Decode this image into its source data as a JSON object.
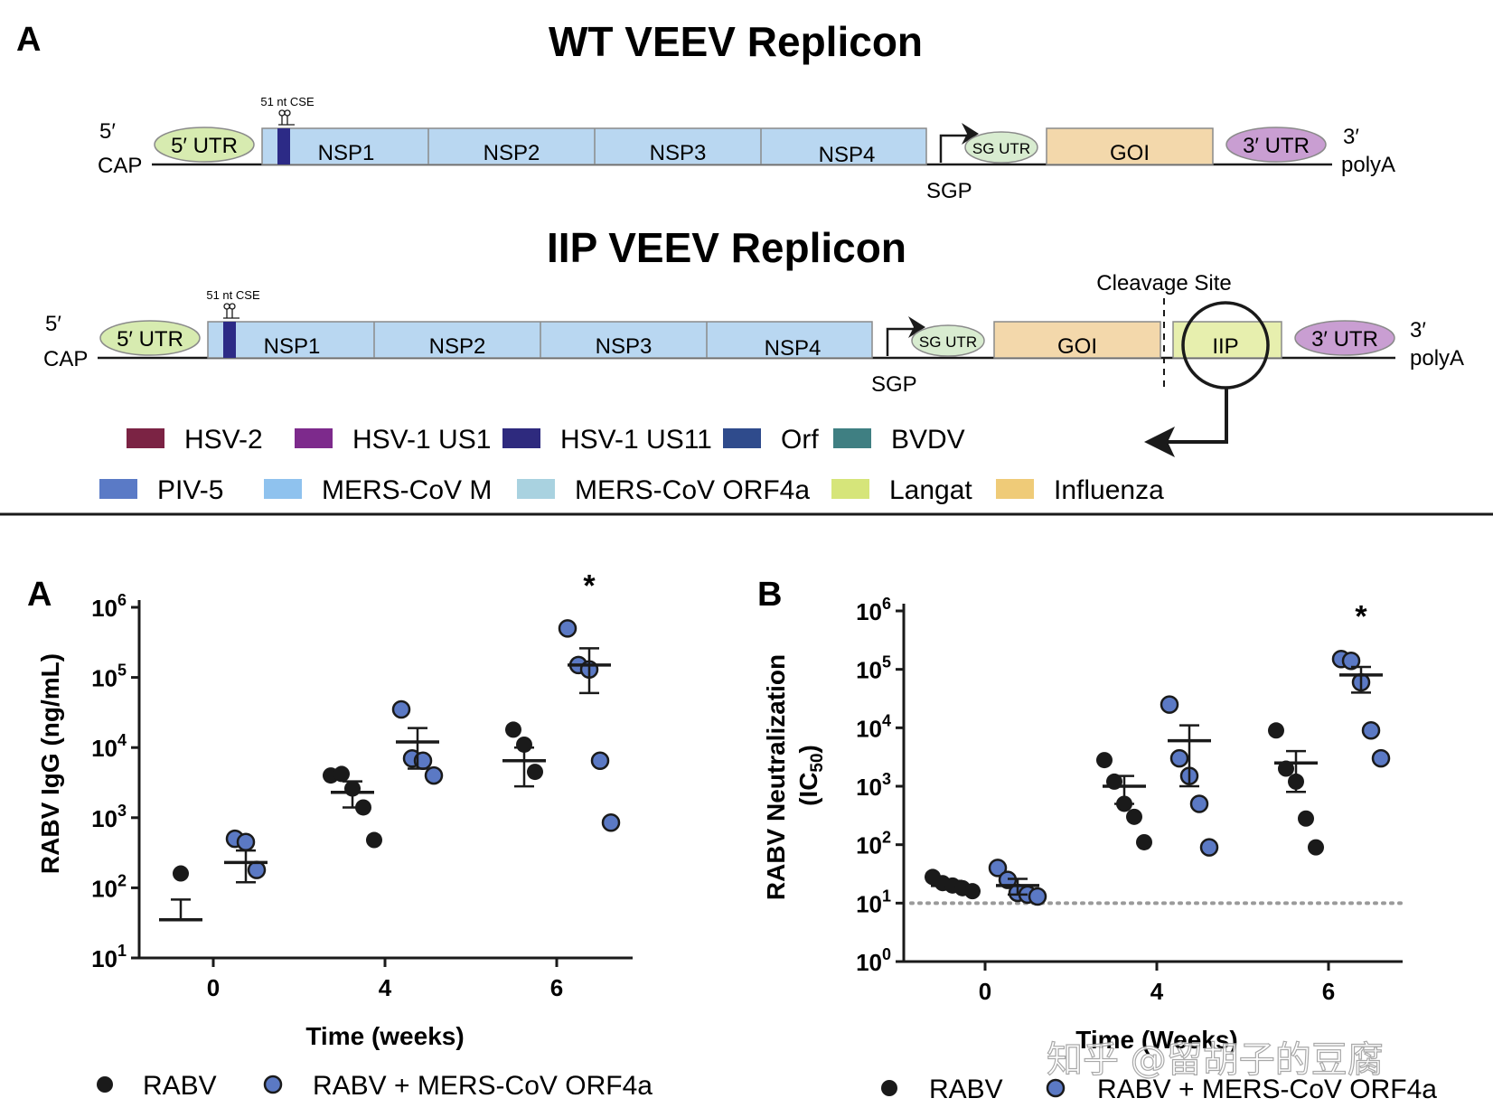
{
  "top_panel": {
    "label": "A",
    "wt": {
      "title": "WT VEEV Replicon",
      "five_prime": "5′",
      "cap": "CAP",
      "utr5": "5′ UTR",
      "cse": "51 nt CSE",
      "nsps": [
        "NSP1",
        "NSP2",
        "NSP3",
        "NSP4"
      ],
      "sg_utr": "SG UTR",
      "sgp": "SGP",
      "goi": "GOI",
      "utr3": "3′ UTR",
      "three_prime": "3′",
      "polya": "polyA"
    },
    "iip": {
      "title": "IIP VEEV Replicon",
      "five_prime": "5′",
      "cap": "CAP",
      "utr5": "5′ UTR",
      "cse": "51 nt CSE",
      "nsps": [
        "NSP1",
        "NSP2",
        "NSP3",
        "NSP4"
      ],
      "sg_utr": "SG UTR",
      "sgp": "SGP",
      "goi": "GOI",
      "cleavage": "Cleavage Site",
      "iip": "IIP",
      "utr3": "3′ UTR",
      "three_prime": "3′",
      "polya": "polyA"
    },
    "legend": [
      {
        "label": "HSV-2",
        "color": "#7b2344"
      },
      {
        "label": "HSV-1 US1",
        "color": "#7d2a8c"
      },
      {
        "label": "HSV-1 US11",
        "color": "#2e2a7e"
      },
      {
        "label": "Orf",
        "color": "#2f4b8c"
      },
      {
        "label": "BVDV",
        "color": "#3f7f82"
      },
      {
        "label": "PIV-5",
        "color": "#5a7ac6"
      },
      {
        "label": "MERS-CoV M",
        "color": "#8fc2ee"
      },
      {
        "label": "MERS-CoV ORF4a",
        "color": "#a9d2e0"
      },
      {
        "label": "Langat",
        "color": "#d6e57a"
      },
      {
        "label": "Influenza",
        "color": "#efcb78"
      }
    ]
  },
  "chart_data": [
    {
      "type": "scatter",
      "panel": "A",
      "ylabel": "RABV IgG (ng/mL)",
      "xlabel": "Time (weeks)",
      "y_scale": "log10",
      "ylim_exp": [
        1,
        6
      ],
      "x_ticks": [
        "0",
        "4",
        "6"
      ],
      "significance": {
        "group": "6",
        "series": "RABV + MERS-CoV ORF4a",
        "mark": "*"
      },
      "series": [
        {
          "name": "RABV",
          "color": "#1a1a1a",
          "groups": [
            {
              "x": "0",
              "points": [
                160
              ],
              "mean": 35,
              "sem": [
                35,
                68
              ]
            },
            {
              "x": "4",
              "points": [
                4000,
                4200,
                2600,
                1400,
                480
              ],
              "mean": 2300,
              "sem": [
                1400,
                3300
              ]
            },
            {
              "x": "6",
              "points": [
                18000,
                11000,
                4500
              ],
              "mean": 6500,
              "sem": [
                2800,
                10000
              ]
            }
          ]
        },
        {
          "name": "RABV + MERS-CoV ORF4a",
          "color": "#5b79c4",
          "groups": [
            {
              "x": "0",
              "points": [
                500,
                450,
                180
              ],
              "mean": 230,
              "sem": [
                120,
                340
              ]
            },
            {
              "x": "4",
              "points": [
                35000,
                7000,
                6500,
                4000
              ],
              "mean": 12000,
              "sem": [
                5000,
                19000
              ]
            },
            {
              "x": "6",
              "points": [
                500000,
                150000,
                130000,
                6500,
                850
              ],
              "mean": 150000,
              "sem": [
                60000,
                260000
              ]
            }
          ]
        }
      ],
      "legend": [
        "RABV",
        "RABV + MERS-CoV ORF4a"
      ]
    },
    {
      "type": "scatter",
      "panel": "B",
      "ylabel": "RABV Neutralization",
      "ylabel2": "(IC",
      "ylabel2_sub": "50",
      "ylabel2_end": ")",
      "xlabel": "Time (Weeks)",
      "y_scale": "log10",
      "ylim_exp": [
        0,
        6
      ],
      "x_ticks": [
        "0",
        "4",
        "6"
      ],
      "detection_limit": 10,
      "significance": {
        "group": "6",
        "series": "RABV + MERS-CoV ORF4a",
        "mark": "*"
      },
      "series": [
        {
          "name": "RABV",
          "color": "#1a1a1a",
          "groups": [
            {
              "x": "0",
              "points": [
                28,
                22,
                20,
                18,
                16
              ],
              "mean": 20,
              "sem": [
                17,
                24
              ]
            },
            {
              "x": "4",
              "points": [
                2800,
                1200,
                500,
                300,
                110
              ],
              "mean": 1000,
              "sem": [
                500,
                1500
              ]
            },
            {
              "x": "6",
              "points": [
                9000,
                2000,
                1200,
                280,
                90
              ],
              "mean": 2500,
              "sem": [
                800,
                4000
              ]
            }
          ]
        },
        {
          "name": "RABV + MERS-CoV ORF4a",
          "color": "#5b79c4",
          "groups": [
            {
              "x": "0",
              "points": [
                40,
                25,
                15,
                14,
                13
              ],
              "mean": 20,
              "sem": [
                14,
                26
              ]
            },
            {
              "x": "4",
              "points": [
                25000,
                3000,
                1500,
                500,
                90
              ],
              "mean": 6000,
              "sem": [
                1000,
                11000
              ]
            },
            {
              "x": "6",
              "points": [
                150000,
                140000,
                60000,
                9000,
                3000
              ],
              "mean": 80000,
              "sem": [
                40000,
                110000
              ]
            }
          ]
        }
      ],
      "legend": [
        "RABV",
        "RABV + MERS-CoV ORF4a"
      ]
    }
  ],
  "watermark": "知乎 @留胡子的豆腐"
}
